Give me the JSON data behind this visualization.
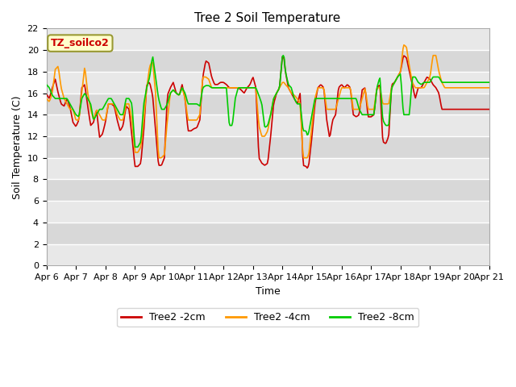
{
  "title": "Tree 2 Soil Temperature",
  "xlabel": "Time",
  "ylabel": "Soil Temperature (C)",
  "ylim": [
    0,
    22
  ],
  "yticks": [
    0,
    2,
    4,
    6,
    8,
    10,
    12,
    14,
    16,
    18,
    20,
    22
  ],
  "x_labels": [
    "Apr 6",
    "Apr 7",
    "Apr 8",
    "Apr 9",
    "Apr 10",
    "Apr 11",
    "Apr 12",
    "Apr 13",
    "Apr 14",
    "Apr 15",
    "Apr 16",
    "Apr 17",
    "Apr 18",
    "Apr 19",
    "Apr 20",
    "Apr 21"
  ],
  "annotation_text": "TZ_soilco2",
  "annotation_color": "#cc0000",
  "annotation_bg": "#ffffcc",
  "annotation_border": "#999933",
  "line_colors": [
    "#cc0000",
    "#ff9900",
    "#00cc00"
  ],
  "line_labels": [
    "Tree2 -2cm",
    "Tree2 -4cm",
    "Tree2 -8cm"
  ],
  "bg_light": "#e8e8e8",
  "bg_dark": "#d8d8d8",
  "grid_color": "#ffffff",
  "title_fontsize": 11,
  "label_fontsize": 9,
  "tick_fontsize": 8,
  "linewidth": 1.2
}
